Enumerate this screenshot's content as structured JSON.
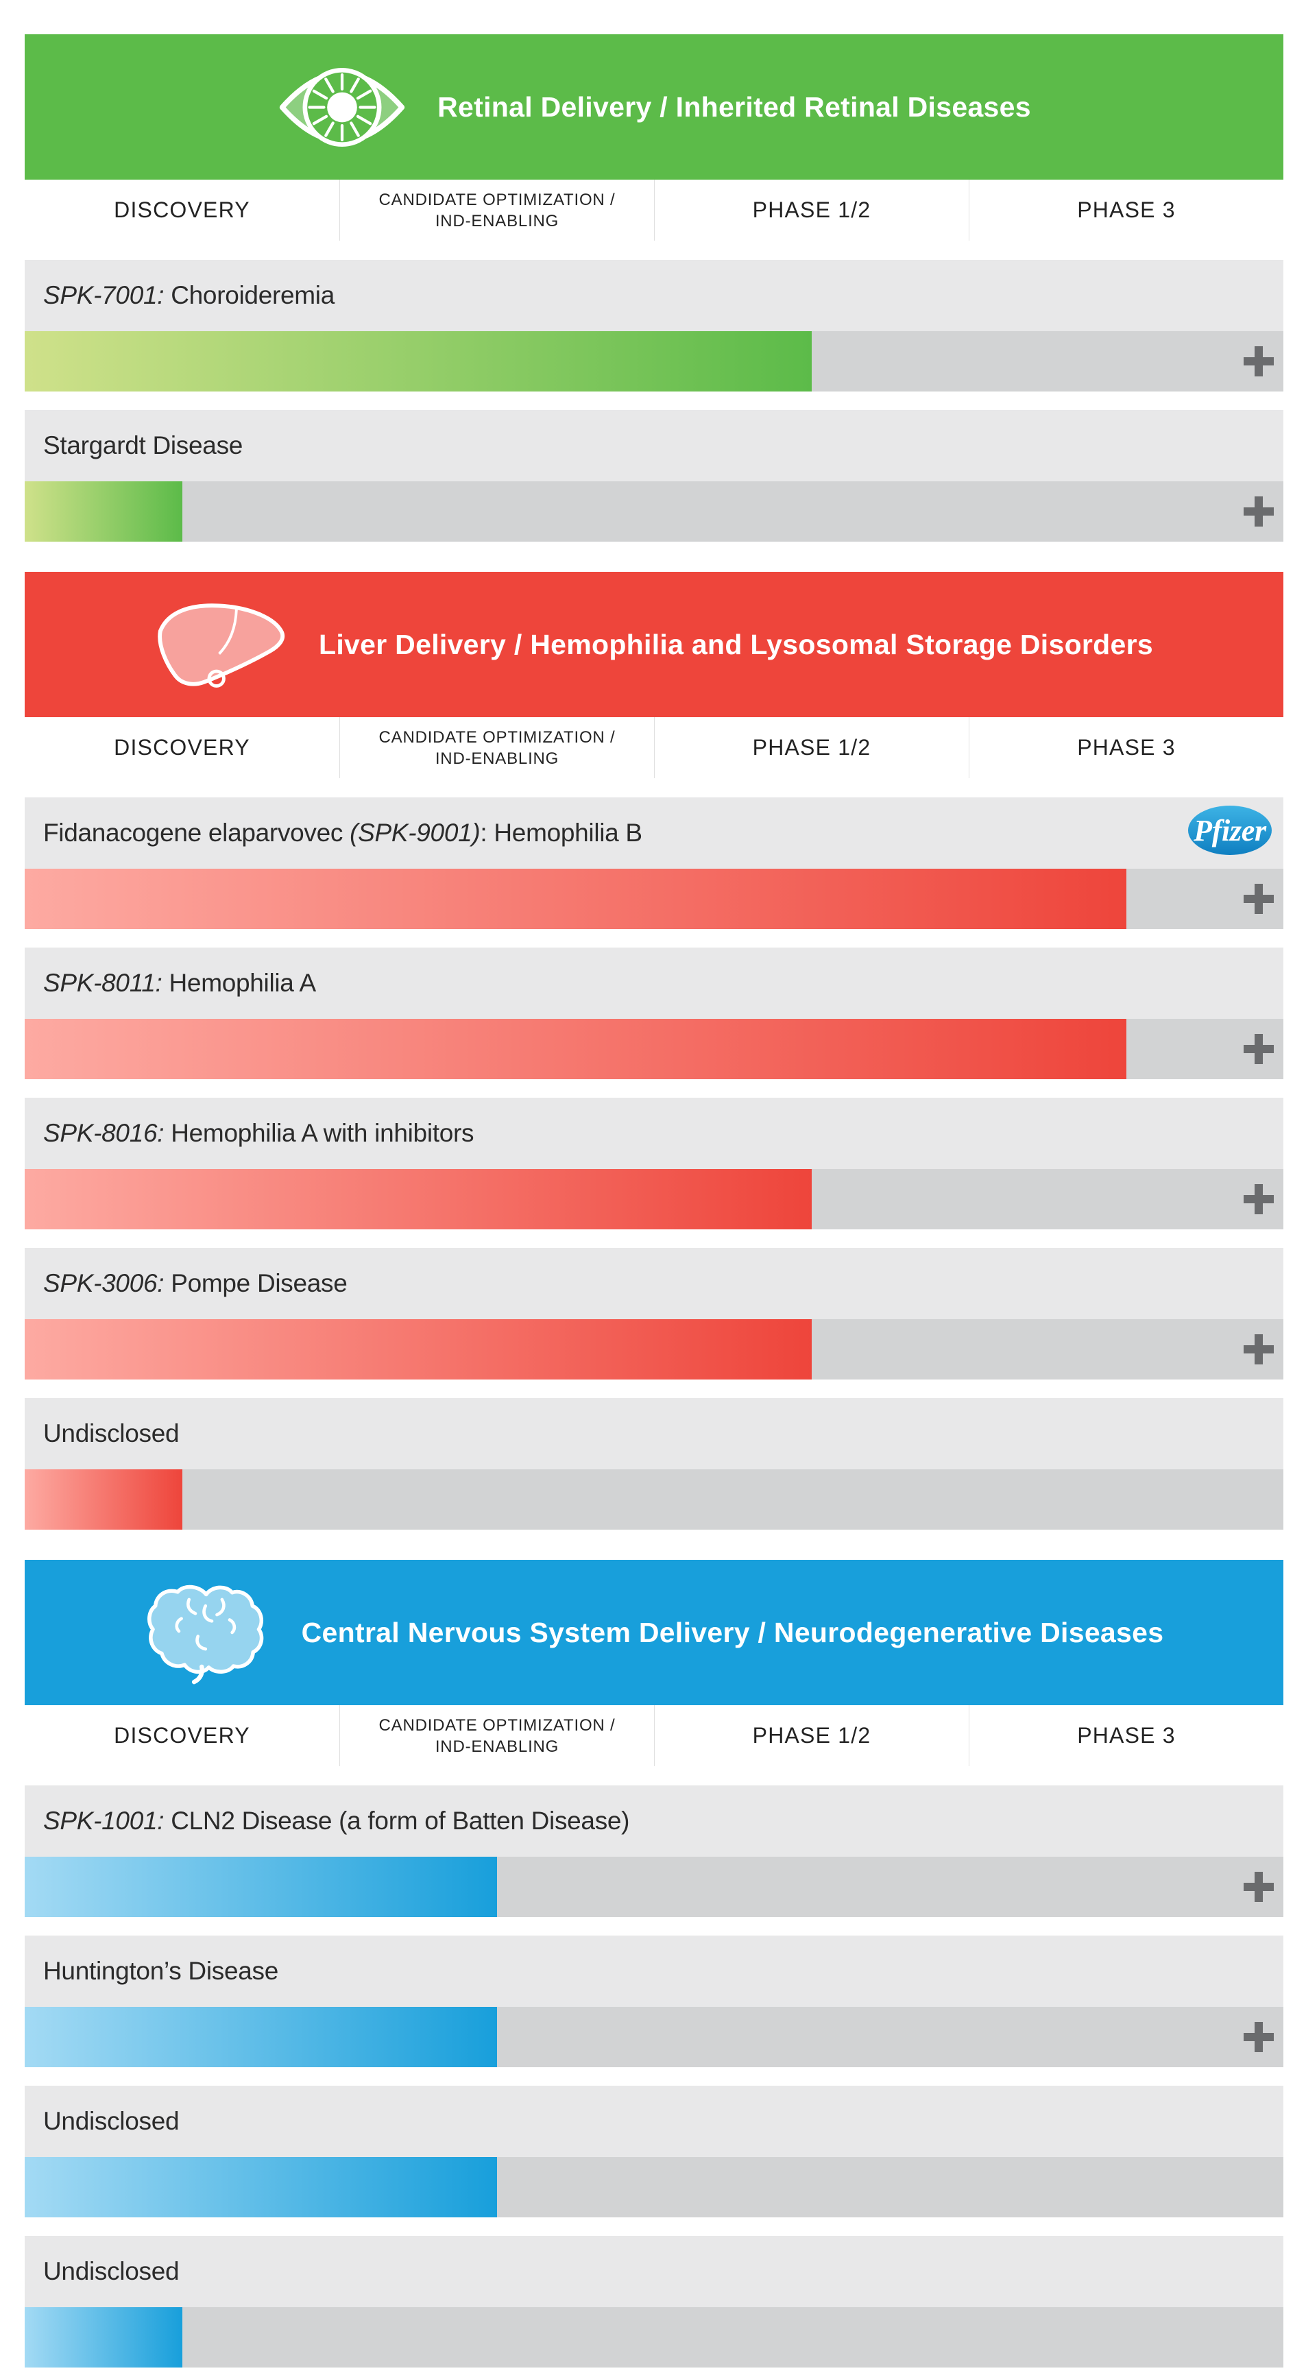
{
  "columns": {
    "discovery": "DISCOVERY",
    "candidate_line1": "CANDIDATE OPTIMIZATION /",
    "candidate_line2": "IND-ENABLING",
    "phase12": "PHASE 1/2",
    "phase3": "PHASE 3"
  },
  "colors": {
    "label_bg": "#e8e8e9",
    "track_bg": "#d2d3d4",
    "plus_icon": "#6a6b6d",
    "column_divider": "#e0e0e0",
    "column_text": "#232323",
    "label_text": "#2b2b2b",
    "header_text": "#ffffff",
    "retinal_accent": "#5cbb49",
    "retinal_bar_start": "#cfe18a",
    "liver_accent": "#ee453b",
    "liver_bar_start": "#fdaaa2",
    "cns_accent": "#189fdb",
    "cns_bar_start": "#a3daf4",
    "pfizer_blue": "#0f7fc1"
  },
  "sections": [
    {
      "title": "Retinal Delivery / Inherited Retinal Diseases",
      "icon": "eye-icon",
      "rows": [
        {
          "pre": "",
          "italic": "SPK-7001:",
          "post": " Choroideremia",
          "progress_pct": 62.5,
          "has_plus": true
        },
        {
          "pre": "Stargardt Disease",
          "italic": "",
          "post": "",
          "progress_pct": 12.5,
          "has_plus": true
        }
      ]
    },
    {
      "title": "Liver Delivery / Hemophilia and Lysosomal Storage Disorders",
      "icon": "liver-icon",
      "rows": [
        {
          "pre": "Fidanacogene elaparvovec ",
          "italic": "(SPK-9001)",
          "post": ": Hemophilia B",
          "progress_pct": 87.5,
          "has_plus": true,
          "partner": "Pfizer"
        },
        {
          "pre": "",
          "italic": "SPK-8011:",
          "post": " Hemophilia A",
          "progress_pct": 87.5,
          "has_plus": true
        },
        {
          "pre": "",
          "italic": "SPK-8016:",
          "post": " Hemophilia A with inhibitors",
          "progress_pct": 62.5,
          "has_plus": true
        },
        {
          "pre": "",
          "italic": "SPK-3006:",
          "post": " Pompe Disease",
          "progress_pct": 62.5,
          "has_plus": true
        },
        {
          "pre": "Undisclosed",
          "italic": "",
          "post": "",
          "progress_pct": 12.5,
          "has_plus": false
        }
      ]
    },
    {
      "title": "Central Nervous System Delivery / Neurodegenerative Diseases",
      "icon": "brain-icon",
      "rows": [
        {
          "pre": "",
          "italic": "SPK-1001:",
          "post": " CLN2 Disease (a form of Batten Disease)",
          "progress_pct": 37.5,
          "has_plus": true
        },
        {
          "pre": "Huntington’s Disease",
          "italic": "",
          "post": "",
          "progress_pct": 37.5,
          "has_plus": true
        },
        {
          "pre": "Undisclosed",
          "italic": "",
          "post": "",
          "progress_pct": 37.5,
          "has_plus": false
        },
        {
          "pre": "Undisclosed",
          "italic": "",
          "post": "",
          "progress_pct": 12.5,
          "has_plus": false
        }
      ]
    }
  ],
  "chart_data": {
    "type": "bar",
    "orientation": "horizontal",
    "title": "Gene therapy pipeline by development stage",
    "stages": [
      "Discovery",
      "Candidate Optimization / IND-Enabling",
      "Phase 1/2",
      "Phase 3"
    ],
    "stage_scale_note": "bar lengths expressed as % of full 4-stage track; 12.5=mid Discovery, 37.5=mid Candidate Optimization, 62.5=mid Phase 1/2, 87.5=mid Phase 3",
    "groups": [
      {
        "name": "Retinal Delivery / Inherited Retinal Diseases",
        "accent": "#5cbb49",
        "programs": [
          {
            "label": "SPK-7001: Choroideremia",
            "progress_pct": 62.5,
            "stage_reached": "Phase 1/2"
          },
          {
            "label": "Stargardt Disease",
            "progress_pct": 12.5,
            "stage_reached": "Discovery"
          }
        ]
      },
      {
        "name": "Liver Delivery / Hemophilia and Lysosomal Storage Disorders",
        "accent": "#ee453b",
        "programs": [
          {
            "label": "Fidanacogene elaparvovec (SPK-9001): Hemophilia B",
            "progress_pct": 87.5,
            "stage_reached": "Phase 3",
            "partner": "Pfizer"
          },
          {
            "label": "SPK-8011: Hemophilia A",
            "progress_pct": 87.5,
            "stage_reached": "Phase 3"
          },
          {
            "label": "SPK-8016: Hemophilia A with inhibitors",
            "progress_pct": 62.5,
            "stage_reached": "Phase 1/2"
          },
          {
            "label": "SPK-3006: Pompe Disease",
            "progress_pct": 62.5,
            "stage_reached": "Phase 1/2"
          },
          {
            "label": "Undisclosed",
            "progress_pct": 12.5,
            "stage_reached": "Discovery"
          }
        ]
      },
      {
        "name": "Central Nervous System Delivery / Neurodegenerative Diseases",
        "accent": "#189fdb",
        "programs": [
          {
            "label": "SPK-1001: CLN2 Disease (a form of Batten Disease)",
            "progress_pct": 37.5,
            "stage_reached": "Candidate Optimization / IND-Enabling"
          },
          {
            "label": "Huntington’s Disease",
            "progress_pct": 37.5,
            "stage_reached": "Candidate Optimization / IND-Enabling"
          },
          {
            "label": "Undisclosed",
            "progress_pct": 37.5,
            "stage_reached": "Candidate Optimization / IND-Enabling"
          },
          {
            "label": "Undisclosed",
            "progress_pct": 12.5,
            "stage_reached": "Discovery"
          }
        ]
      }
    ]
  }
}
